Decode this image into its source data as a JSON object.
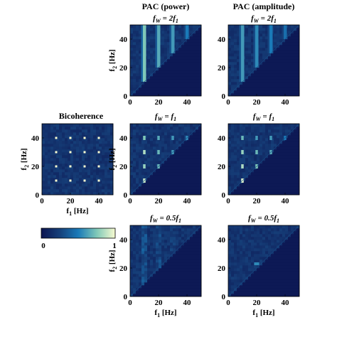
{
  "column_titles": [
    "PAC (power)",
    "PAC (amplitude)"
  ],
  "row_labels": [
    "f_W = 2f_1",
    "f_W = f_1",
    "f_W = 0.5f_1"
  ],
  "bicoherence_title": "Bicoherence",
  "colorbar": {
    "min_label": "0",
    "max_label": "1",
    "colormap": "parula-like",
    "range": [
      0,
      1
    ]
  },
  "axis_labels": {
    "x": "f1 [Hz]",
    "y": "f2 [Hz]"
  },
  "ticks": {
    "values": [
      0,
      20,
      40
    ],
    "labels": [
      "0",
      "20",
      "40"
    ]
  },
  "chart_data": [
    {
      "type": "heatmap",
      "title": "PAC (power)",
      "subtitle": "f_W = 2f_1",
      "xlabel": "",
      "ylabel": "f2 [Hz]",
      "xlim": [
        0,
        50
      ],
      "ylim": [
        0,
        50
      ],
      "pattern": "vertical-stripes",
      "masked_region": "f2 < f1",
      "stripes_x": [
        10,
        20,
        30,
        40
      ],
      "stripe_values": [
        0.75,
        0.65,
        0.6,
        0.5
      ]
    },
    {
      "type": "heatmap",
      "title": "PAC (amplitude)",
      "subtitle": "f_W = 2f_1",
      "xlabel": "",
      "ylabel": "",
      "xlim": [
        0,
        50
      ],
      "ylim": [
        0,
        50
      ],
      "pattern": "vertical-stripes",
      "masked_region": "f2 < f1",
      "stripes_x": [
        10,
        20,
        30,
        40
      ],
      "stripe_values": [
        0.6,
        0.55,
        0.5,
        0.45
      ]
    },
    {
      "type": "heatmap",
      "title": "Bicoherence",
      "xlabel": "f1 [Hz]",
      "ylabel": "f2 [Hz]",
      "xlim": [
        0,
        50
      ],
      "ylim": [
        0,
        50
      ],
      "pattern": "grid-dots",
      "peaks": [
        [
          10,
          10
        ],
        [
          20,
          10
        ],
        [
          30,
          10
        ],
        [
          40,
          10
        ],
        [
          10,
          20
        ],
        [
          20,
          20
        ],
        [
          30,
          20
        ],
        [
          40,
          20
        ],
        [
          10,
          30
        ],
        [
          20,
          30
        ],
        [
          30,
          30
        ],
        [
          40,
          30
        ],
        [
          10,
          40
        ],
        [
          20,
          40
        ],
        [
          30,
          40
        ],
        [
          40,
          40
        ]
      ]
    },
    {
      "type": "heatmap",
      "subtitle": "f_W = f_1",
      "xlabel": "",
      "ylabel": "f2 [Hz]",
      "xlim": [
        0,
        50
      ],
      "ylim": [
        0,
        50
      ],
      "pattern": "blobs",
      "masked_region": "f2 < f1",
      "peaks": [
        [
          10,
          10,
          0.9
        ],
        [
          10,
          20,
          0.8
        ],
        [
          10,
          30,
          0.85
        ],
        [
          10,
          40,
          0.75
        ],
        [
          20,
          20,
          0.7
        ],
        [
          20,
          30,
          0.7
        ],
        [
          20,
          40,
          0.65
        ],
        [
          30,
          30,
          0.6
        ],
        [
          30,
          40,
          0.6
        ],
        [
          40,
          40,
          0.55
        ]
      ]
    },
    {
      "type": "heatmap",
      "subtitle": "f_W = f_1",
      "xlabel": "",
      "ylabel": "",
      "xlim": [
        0,
        50
      ],
      "ylim": [
        0,
        50
      ],
      "pattern": "blobs",
      "masked_region": "f2 < f1",
      "peaks": [
        [
          10,
          10,
          0.95
        ],
        [
          10,
          20,
          0.85
        ],
        [
          10,
          30,
          0.8
        ],
        [
          10,
          40,
          0.7
        ],
        [
          20,
          20,
          0.75
        ],
        [
          20,
          30,
          0.7
        ],
        [
          20,
          40,
          0.6
        ],
        [
          30,
          30,
          0.65
        ],
        [
          30,
          40,
          0.6
        ],
        [
          40,
          40,
          0.5
        ]
      ]
    },
    {
      "type": "heatmap",
      "subtitle": "f_W = 0.5f_1",
      "xlabel": "f1 [Hz]",
      "ylabel": "f2 [Hz]",
      "xlim": [
        0,
        50
      ],
      "ylim": [
        0,
        50
      ],
      "pattern": "faint-stripes",
      "masked_region": "f2 < f1",
      "stripes_x": [
        10,
        20,
        30
      ],
      "stripe_values": [
        0.35,
        0.3,
        0.25
      ]
    },
    {
      "type": "heatmap",
      "subtitle": "f_W = 0.5f_1",
      "xlabel": "f1 [Hz]",
      "ylabel": "",
      "xlim": [
        0,
        50
      ],
      "ylim": [
        0,
        50
      ],
      "pattern": "single-peak",
      "masked_region": "f2 < f1",
      "peaks": [
        [
          20,
          23,
          0.55
        ]
      ]
    }
  ]
}
